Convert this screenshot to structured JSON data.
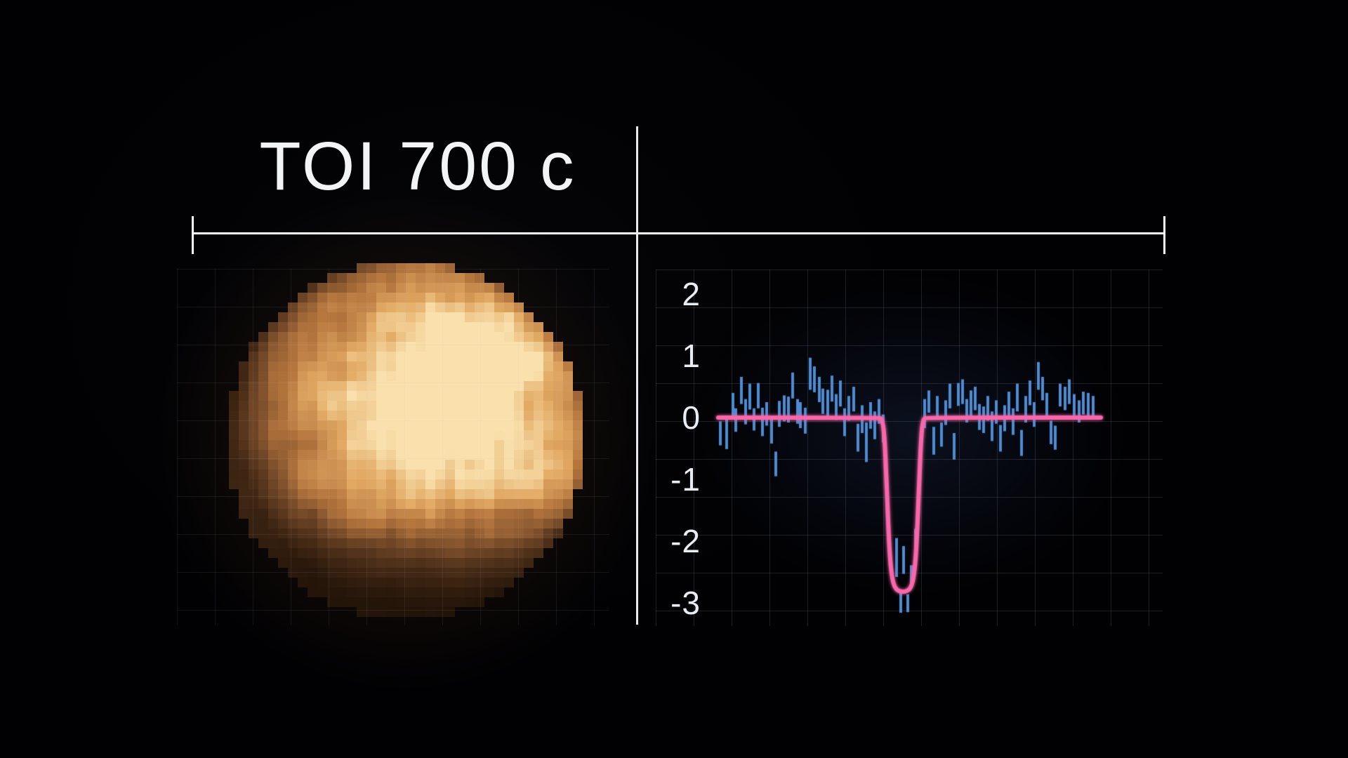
{
  "page": {
    "title": "TOI 700 c"
  },
  "colors": {
    "background": "#020206",
    "title_text": "#f3f4f6",
    "tick_text": "#e8ecf4",
    "ruler": "#fafafa",
    "divider": "#e9e9ee",
    "grid_line": "#a8b4cc",
    "bar": "#4e8bd0",
    "model_line": "#f767a9",
    "plot_glow": "#283a69",
    "planet_glow": "#a06328"
  },
  "planet": {
    "label": "TOI 700 c",
    "palette_stops": [
      [
        0.0,
        "#1d1006"
      ],
      [
        0.32,
        "#6e4526"
      ],
      [
        0.56,
        "#b5763e"
      ],
      [
        0.78,
        "#e2a963"
      ],
      [
        1.0,
        "#f9e0ac"
      ]
    ]
  },
  "chart_data": {
    "type": "line",
    "title": "",
    "xlabel": "",
    "ylabel": "",
    "grid": true,
    "legend": false,
    "y_axis": {
      "range": [
        -3.4,
        2.5
      ],
      "ticks": [
        {
          "label": "2",
          "value": 2
        },
        {
          "label": "1",
          "value": 1
        },
        {
          "label": "0",
          "value": 0
        },
        {
          "label": "-1",
          "value": -1
        },
        {
          "label": "-2",
          "value": -2
        },
        {
          "label": "-3",
          "value": -3
        }
      ]
    },
    "x_axis": {
      "range": [
        0,
        1
      ],
      "ticks": []
    },
    "series": [
      {
        "name": "binned flux error bars",
        "style": "error_bars",
        "points": [
          [
            0.006,
            -0.06,
            -0.45
          ],
          [
            0.022,
            -0.03,
            -0.51
          ],
          [
            0.039,
            0.4,
            0.0
          ],
          [
            0.046,
            0.15,
            -0.23
          ],
          [
            0.061,
            0.66,
            0.22
          ],
          [
            0.072,
            0.3,
            -0.11
          ],
          [
            0.083,
            0.55,
            0.13
          ],
          [
            0.094,
            0.15,
            -0.21
          ],
          [
            0.105,
            0.56,
            0.15
          ],
          [
            0.116,
            0.16,
            -0.3
          ],
          [
            0.127,
            0.25,
            -0.13
          ],
          [
            0.139,
            0.02,
            -0.42
          ],
          [
            0.15,
            -0.55,
            -0.95
          ],
          [
            0.16,
            0.27,
            -0.15
          ],
          [
            0.172,
            0.36,
            -0.06
          ],
          [
            0.183,
            0.34,
            -0.08
          ],
          [
            0.194,
            0.73,
            0.31
          ],
          [
            0.207,
            0.3,
            -0.1
          ],
          [
            0.215,
            0.25,
            -0.17
          ],
          [
            0.228,
            0.16,
            -0.26
          ],
          [
            0.24,
            0.97,
            0.45
          ],
          [
            0.251,
            0.83,
            0.41
          ],
          [
            0.264,
            0.66,
            0.25
          ],
          [
            0.273,
            0.47,
            0.06
          ],
          [
            0.286,
            0.45,
            0.02
          ],
          [
            0.297,
            0.68,
            0.26
          ],
          [
            0.308,
            0.38,
            -0.04
          ],
          [
            0.319,
            0.6,
            0.18
          ],
          [
            0.33,
            0.15,
            -0.3
          ],
          [
            0.341,
            0.35,
            -0.05
          ],
          [
            0.354,
            0.5,
            0.1
          ],
          [
            0.365,
            -0.1,
            -0.55
          ],
          [
            0.376,
            0.2,
            -0.25
          ],
          [
            0.387,
            -0.08,
            -0.72
          ],
          [
            0.398,
            0.25,
            -0.18
          ],
          [
            0.409,
            0.1,
            -0.35
          ],
          [
            0.42,
            0.3,
            -0.1
          ],
          [
            0.431,
            0.05,
            -0.4
          ],
          [
            0.466,
            -1.95,
            -2.58
          ],
          [
            0.477,
            -2.81,
            -3.16
          ],
          [
            0.484,
            -2.08,
            -2.53
          ],
          [
            0.495,
            -2.86,
            -3.15
          ],
          [
            0.505,
            -2.39,
            -2.76
          ],
          [
            0.516,
            -1.8,
            -2.22
          ],
          [
            0.539,
            0.3,
            -0.17
          ],
          [
            0.55,
            0.44,
            0.08
          ],
          [
            0.563,
            -0.15,
            -0.6
          ],
          [
            0.572,
            0.35,
            -0.02
          ],
          [
            0.583,
            -0.08,
            -0.47
          ],
          [
            0.594,
            0.28,
            -0.12
          ],
          [
            0.606,
            0.55,
            0.15
          ],
          [
            0.617,
            -0.25,
            -0.68
          ],
          [
            0.628,
            0.56,
            0.19
          ],
          [
            0.639,
            0.62,
            0.22
          ],
          [
            0.65,
            0.3,
            -0.08
          ],
          [
            0.661,
            0.44,
            0.02
          ],
          [
            0.672,
            0.5,
            0.12
          ],
          [
            0.683,
            0.22,
            -0.2
          ],
          [
            0.694,
            0.18,
            -0.25
          ],
          [
            0.705,
            0.35,
            -0.05
          ],
          [
            0.716,
            0.1,
            -0.38
          ],
          [
            0.727,
            0.28,
            -0.1
          ],
          [
            0.738,
            -0.12,
            -0.55
          ],
          [
            0.749,
            0.2,
            -0.22
          ],
          [
            0.76,
            0.42,
            0.0
          ],
          [
            0.771,
            0.15,
            -0.28
          ],
          [
            0.782,
            0.55,
            0.1
          ],
          [
            0.793,
            -0.2,
            -0.62
          ],
          [
            0.804,
            0.35,
            -0.08
          ],
          [
            0.815,
            0.6,
            0.2
          ],
          [
            0.826,
            0.25,
            -0.15
          ],
          [
            0.837,
            0.9,
            0.45
          ],
          [
            0.848,
            0.66,
            0.28
          ],
          [
            0.859,
            0.4,
            -0.02
          ],
          [
            0.87,
            -0.05,
            -0.43
          ],
          [
            0.881,
            -0.13,
            -0.52
          ],
          [
            0.894,
            0.55,
            0.18
          ],
          [
            0.906,
            0.5,
            0.12
          ],
          [
            0.917,
            0.62,
            0.22
          ],
          [
            0.93,
            0.38,
            -0.02
          ],
          [
            0.943,
            0.28,
            -0.08
          ],
          [
            0.954,
            0.42,
            0.05
          ],
          [
            0.967,
            0.4,
            0.03
          ],
          [
            0.98,
            0.35,
            -0.03
          ]
        ]
      },
      {
        "name": "transit model fit",
        "style": "model_line",
        "depth": -2.82,
        "points": [
          [
            0.0,
            0
          ],
          [
            0.42,
            0
          ],
          [
            0.428,
            -0.02
          ],
          [
            0.434,
            -0.25
          ],
          [
            0.439,
            -0.9
          ],
          [
            0.444,
            -1.7
          ],
          [
            0.449,
            -2.3
          ],
          [
            0.455,
            -2.62
          ],
          [
            0.462,
            -2.76
          ],
          [
            0.472,
            -2.81
          ],
          [
            0.483,
            -2.82
          ],
          [
            0.494,
            -2.81
          ],
          [
            0.503,
            -2.76
          ],
          [
            0.51,
            -2.62
          ],
          [
            0.516,
            -2.3
          ],
          [
            0.521,
            -1.7
          ],
          [
            0.526,
            -0.9
          ],
          [
            0.531,
            -0.25
          ],
          [
            0.536,
            -0.02
          ],
          [
            0.543,
            0
          ],
          [
            1.0,
            0
          ]
        ]
      }
    ]
  }
}
